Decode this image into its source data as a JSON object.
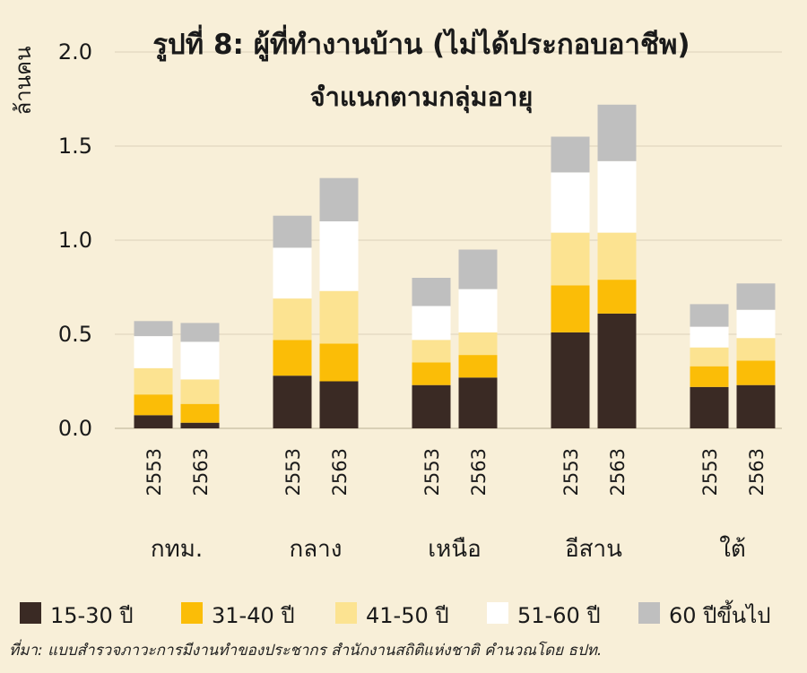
{
  "chart_data": {
    "type": "bar",
    "stacked": true,
    "title": "รูปที่ 8: ผู้ที่ทำงานบ้าน (ไม่ได้ประกอบอาชีพ)",
    "subtitle": "จำแนกตามกลุ่มอายุ",
    "ylabel": "ล้านคน",
    "ylim": [
      0,
      2.0
    ],
    "yticks": [
      "0.0",
      "0.5",
      "1.0",
      "1.5",
      "2.0"
    ],
    "grid": true,
    "legend_position": "bottom",
    "groups": [
      "กทม.",
      "กลาง",
      "เหนือ",
      "อีสาน",
      "ใต้"
    ],
    "years": [
      "2553",
      "2563"
    ],
    "series": [
      {
        "name": "15-30 ปี",
        "color": "#3a2a24",
        "values": [
          [
            0.07,
            0.03
          ],
          [
            0.28,
            0.25
          ],
          [
            0.23,
            0.27
          ],
          [
            0.51,
            0.61
          ],
          [
            0.22,
            0.23
          ]
        ]
      },
      {
        "name": "31-40 ปี",
        "color": "#fbbd07",
        "values": [
          [
            0.11,
            0.1
          ],
          [
            0.19,
            0.2
          ],
          [
            0.12,
            0.12
          ],
          [
            0.25,
            0.18
          ],
          [
            0.11,
            0.13
          ]
        ]
      },
      {
        "name": "41-50 ปี",
        "color": "#fce391",
        "values": [
          [
            0.14,
            0.13
          ],
          [
            0.22,
            0.28
          ],
          [
            0.12,
            0.12
          ],
          [
            0.28,
            0.25
          ],
          [
            0.1,
            0.12
          ]
        ]
      },
      {
        "name": "51-60 ปี",
        "color": "#ffffff",
        "values": [
          [
            0.17,
            0.2
          ],
          [
            0.27,
            0.37
          ],
          [
            0.18,
            0.23
          ],
          [
            0.32,
            0.38
          ],
          [
            0.11,
            0.15
          ]
        ]
      },
      {
        "name": "60 ปีขึ้นไป",
        "color": "#bfbfbf",
        "values": [
          [
            0.08,
            0.1
          ],
          [
            0.17,
            0.23
          ],
          [
            0.15,
            0.21
          ],
          [
            0.19,
            0.3
          ],
          [
            0.12,
            0.14
          ]
        ]
      }
    ]
  },
  "source": "ที่มา: แบบสำรวจภาวะการมีงานทำของประชากร สำนักงานสถิติแห่งชาติ คำนวณโดย ธปท."
}
